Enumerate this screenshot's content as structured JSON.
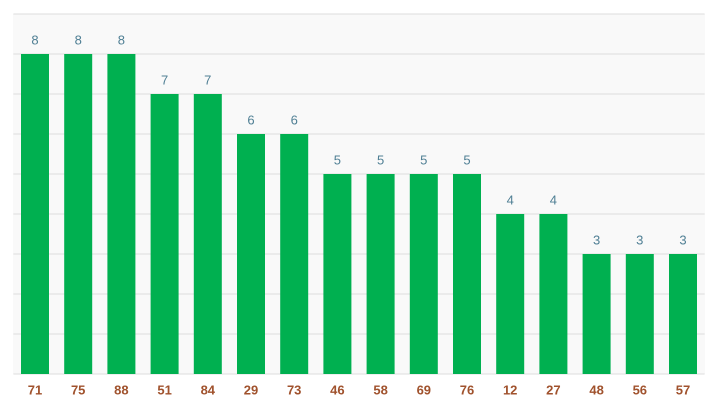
{
  "chart_data": {
    "type": "bar",
    "categories": [
      "71",
      "75",
      "88",
      "51",
      "84",
      "29",
      "73",
      "46",
      "58",
      "69",
      "76",
      "12",
      "27",
      "48",
      "56",
      "57"
    ],
    "values": [
      8,
      8,
      8,
      7,
      7,
      6,
      6,
      5,
      5,
      5,
      5,
      4,
      4,
      3,
      3,
      3
    ],
    "color": "#00b050",
    "ylim": [
      0,
      9
    ],
    "yticks": [
      0,
      1,
      2,
      3,
      4,
      5,
      6,
      7,
      8,
      9
    ],
    "grid": true
  }
}
